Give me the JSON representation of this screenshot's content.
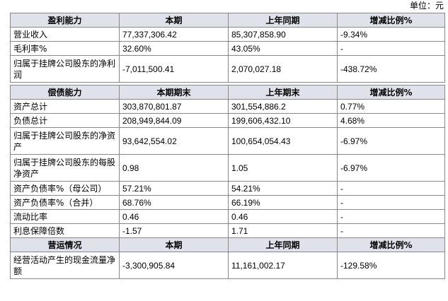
{
  "unit_label": "单位：元",
  "sections": {
    "profit": {
      "header": [
        "盈利能力",
        "本期",
        "上年同期",
        "增减比例%"
      ],
      "rows": [
        [
          "营业收入",
          "77,337,306.42",
          "85,307,858.90",
          "-9.34%"
        ],
        [
          "毛利率%",
          "32.60%",
          "43.05%",
          "-"
        ],
        [
          "归属于挂牌公司股东的净利润",
          "-7,011,500.41",
          "2,070,027.18",
          "-438.72%"
        ]
      ]
    },
    "solvency": {
      "header": [
        "偿债能力",
        "本期期末",
        "上年期末",
        "增减比例%"
      ],
      "rows": [
        [
          "资产总计",
          "303,870,801.87",
          "301,554,886.2",
          "0.77%"
        ],
        [
          "负债总计",
          "208,949,844.09",
          "199,606,432.10",
          "4.68%"
        ],
        [
          "归属于挂牌公司股东的净资产",
          "93,642,554.02",
          "100,654,054.43",
          "-6.97%"
        ],
        [
          "归属于挂牌公司股东的每股净资产",
          "0.98",
          "1.05",
          "-6.97%"
        ],
        [
          "资产负债率%（母公司）",
          "57.21%",
          "54.21%",
          "-"
        ],
        [
          "资产负债率%（合并）",
          "68.76%",
          "66.19%",
          "-"
        ],
        [
          "流动比率",
          "0.46",
          "0.46",
          "-"
        ],
        [
          "利息保障倍数",
          "-1.57",
          "1.71",
          "-"
        ]
      ]
    },
    "operation": {
      "header": [
        "营运情况",
        "本期",
        "上年同期",
        "增减比例%"
      ],
      "rows": [
        [
          "经营活动产生的现金流量净额",
          "-3,300,905.84",
          "11,161,002.17",
          "-129.58%"
        ]
      ]
    }
  }
}
